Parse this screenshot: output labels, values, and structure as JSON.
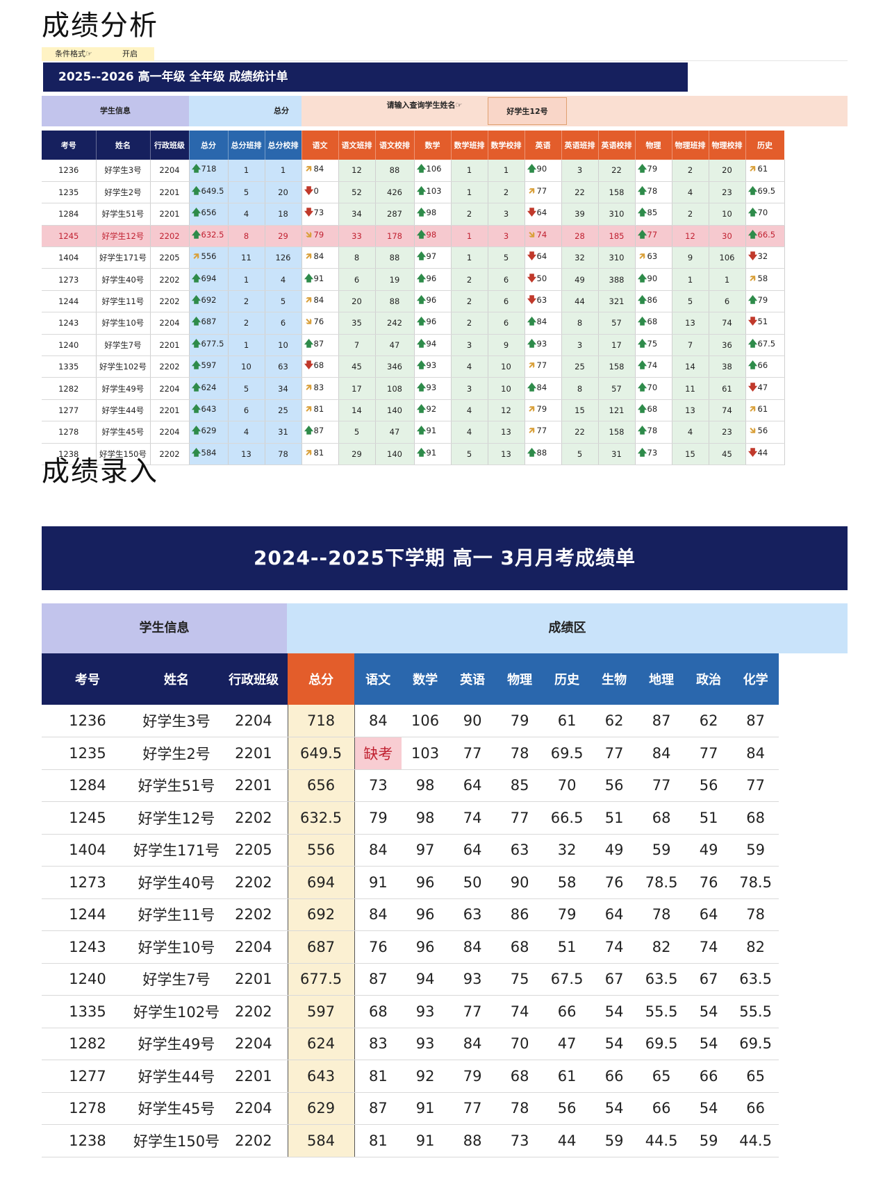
{
  "headings": {
    "analysis": "成绩分析",
    "entry": "成绩录入"
  },
  "analysis": {
    "cf_label": "条件格式☞",
    "cf_value": "开启",
    "title": "2025--2026 高一年级 全年级 成绩统计单",
    "groups": {
      "info": "学生信息",
      "total": "总分",
      "query_label": "请输入查询学生姓名☞",
      "query_value": "好学生12号"
    },
    "columns": [
      "考号",
      "姓名",
      "行政班级",
      "总分",
      "总分班排",
      "总分校排",
      "语文",
      "语文班排",
      "语文校排",
      "数学",
      "数学班排",
      "数学校排",
      "英语",
      "英语班排",
      "英语校排",
      "物理",
      "物理班排",
      "物理校排",
      "历史"
    ],
    "highlight_row": 3,
    "rows": [
      [
        "1236",
        "好学生3号",
        "2204",
        [
          "up",
          "718"
        ],
        "1",
        "1",
        [
          "ne",
          "84"
        ],
        "12",
        "88",
        [
          "up",
          "106"
        ],
        "1",
        "1",
        [
          "up",
          "90"
        ],
        "3",
        "22",
        [
          "up",
          "79"
        ],
        "2",
        "20",
        [
          "ne",
          "61"
        ]
      ],
      [
        "1235",
        "好学生2号",
        "2201",
        [
          "up",
          "649.5"
        ],
        "5",
        "20",
        [
          "dn",
          "0"
        ],
        "52",
        "426",
        [
          "up",
          "103"
        ],
        "1",
        "2",
        [
          "ne",
          "77"
        ],
        "22",
        "158",
        [
          "up",
          "78"
        ],
        "4",
        "23",
        [
          "up",
          "69.5"
        ]
      ],
      [
        "1284",
        "好学生51号",
        "2201",
        [
          "up",
          "656"
        ],
        "4",
        "18",
        [
          "dn",
          "73"
        ],
        "34",
        "287",
        [
          "up",
          "98"
        ],
        "2",
        "3",
        [
          "dn",
          "64"
        ],
        "39",
        "310",
        [
          "up",
          "85"
        ],
        "2",
        "10",
        [
          "up",
          "70"
        ]
      ],
      [
        "1245",
        "好学生12号",
        "2202",
        [
          "up",
          "632.5"
        ],
        "8",
        "29",
        [
          "se",
          "79"
        ],
        "33",
        "178",
        [
          "up",
          "98"
        ],
        "1",
        "3",
        [
          "se",
          "74"
        ],
        "28",
        "185",
        [
          "up",
          "77"
        ],
        "12",
        "30",
        [
          "up",
          "66.5"
        ]
      ],
      [
        "1404",
        "好学生171号",
        "2205",
        [
          "ne",
          "556"
        ],
        "11",
        "126",
        [
          "ne",
          "84"
        ],
        "8",
        "88",
        [
          "up",
          "97"
        ],
        "1",
        "5",
        [
          "dn",
          "64"
        ],
        "32",
        "310",
        [
          "ne",
          "63"
        ],
        "9",
        "106",
        [
          "dn",
          "32"
        ]
      ],
      [
        "1273",
        "好学生40号",
        "2202",
        [
          "up",
          "694"
        ],
        "1",
        "4",
        [
          "up",
          "91"
        ],
        "6",
        "19",
        [
          "up",
          "96"
        ],
        "2",
        "6",
        [
          "dn",
          "50"
        ],
        "49",
        "388",
        [
          "up",
          "90"
        ],
        "1",
        "1",
        [
          "ne",
          "58"
        ]
      ],
      [
        "1244",
        "好学生11号",
        "2202",
        [
          "up",
          "692"
        ],
        "2",
        "5",
        [
          "ne",
          "84"
        ],
        "20",
        "88",
        [
          "up",
          "96"
        ],
        "2",
        "6",
        [
          "dn",
          "63"
        ],
        "44",
        "321",
        [
          "up",
          "86"
        ],
        "5",
        "6",
        [
          "up",
          "79"
        ]
      ],
      [
        "1243",
        "好学生10号",
        "2204",
        [
          "up",
          "687"
        ],
        "2",
        "6",
        [
          "se",
          "76"
        ],
        "35",
        "242",
        [
          "up",
          "96"
        ],
        "2",
        "6",
        [
          "up",
          "84"
        ],
        "8",
        "57",
        [
          "up",
          "68"
        ],
        "13",
        "74",
        [
          "dn",
          "51"
        ]
      ],
      [
        "1240",
        "好学生7号",
        "2201",
        [
          "up",
          "677.5"
        ],
        "1",
        "10",
        [
          "up",
          "87"
        ],
        "7",
        "47",
        [
          "up",
          "94"
        ],
        "3",
        "9",
        [
          "up",
          "93"
        ],
        "3",
        "17",
        [
          "up",
          "75"
        ],
        "7",
        "36",
        [
          "up",
          "67.5"
        ]
      ],
      [
        "1335",
        "好学生102号",
        "2202",
        [
          "up",
          "597"
        ],
        "10",
        "63",
        [
          "dn",
          "68"
        ],
        "45",
        "346",
        [
          "up",
          "93"
        ],
        "4",
        "10",
        [
          "ne",
          "77"
        ],
        "25",
        "158",
        [
          "up",
          "74"
        ],
        "14",
        "38",
        [
          "up",
          "66"
        ]
      ],
      [
        "1282",
        "好学生49号",
        "2204",
        [
          "up",
          "624"
        ],
        "5",
        "34",
        [
          "ne",
          "83"
        ],
        "17",
        "108",
        [
          "up",
          "93"
        ],
        "3",
        "10",
        [
          "up",
          "84"
        ],
        "8",
        "57",
        [
          "up",
          "70"
        ],
        "11",
        "61",
        [
          "dn",
          "47"
        ]
      ],
      [
        "1277",
        "好学生44号",
        "2201",
        [
          "up",
          "643"
        ],
        "6",
        "25",
        [
          "ne",
          "81"
        ],
        "14",
        "140",
        [
          "up",
          "92"
        ],
        "4",
        "12",
        [
          "ne",
          "79"
        ],
        "15",
        "121",
        [
          "up",
          "68"
        ],
        "13",
        "74",
        [
          "ne",
          "61"
        ]
      ],
      [
        "1278",
        "好学生45号",
        "2204",
        [
          "up",
          "629"
        ],
        "4",
        "31",
        [
          "up",
          "87"
        ],
        "5",
        "47",
        [
          "up",
          "91"
        ],
        "4",
        "13",
        [
          "ne",
          "77"
        ],
        "22",
        "158",
        [
          "up",
          "78"
        ],
        "4",
        "23",
        [
          "se",
          "56"
        ]
      ],
      [
        "1238",
        "好学生150号",
        "2202",
        [
          "up",
          "584"
        ],
        "13",
        "78",
        [
          "ne",
          "81"
        ],
        "29",
        "140",
        [
          "up",
          "91"
        ],
        "5",
        "13",
        [
          "up",
          "88"
        ],
        "5",
        "31",
        [
          "up",
          "73"
        ],
        "15",
        "45",
        [
          "dn",
          "44"
        ]
      ]
    ],
    "arrow_glyphs": {
      "up": "🡅",
      "dn": "🡇",
      "ne": "🡵",
      "se": "🡶"
    },
    "colors": {
      "navy": "#16205e",
      "header_orange": "#e35d2b",
      "info_purple": "#c2c4ec",
      "total_blue": "#c9e3fa",
      "score_green": "#e4f2e5",
      "query_peach": "#fadfd2",
      "highlight": "#f6c9cf"
    }
  },
  "entry": {
    "title": "2024--2025下学期 高一 3月月考成绩单",
    "groups": {
      "info": "学生信息",
      "scores": "成绩区"
    },
    "columns": [
      "考号",
      "姓名",
      "行政班级",
      "总分",
      "语文",
      "数学",
      "英语",
      "物理",
      "历史",
      "生物",
      "地理",
      "政治",
      "化学"
    ],
    "absent_text": "缺考",
    "rows": [
      [
        "1236",
        "好学生3号",
        "2204",
        "718",
        "84",
        "106",
        "90",
        "79",
        "61",
        "62",
        "87",
        "62",
        "87"
      ],
      [
        "1235",
        "好学生2号",
        "2201",
        "649.5",
        "缺考",
        "103",
        "77",
        "78",
        "69.5",
        "77",
        "84",
        "77",
        "84"
      ],
      [
        "1284",
        "好学生51号",
        "2201",
        "656",
        "73",
        "98",
        "64",
        "85",
        "70",
        "56",
        "77",
        "56",
        "77"
      ],
      [
        "1245",
        "好学生12号",
        "2202",
        "632.5",
        "79",
        "98",
        "74",
        "77",
        "66.5",
        "51",
        "68",
        "51",
        "68"
      ],
      [
        "1404",
        "好学生171号",
        "2205",
        "556",
        "84",
        "97",
        "64",
        "63",
        "32",
        "49",
        "59",
        "49",
        "59"
      ],
      [
        "1273",
        "好学生40号",
        "2202",
        "694",
        "91",
        "96",
        "50",
        "90",
        "58",
        "76",
        "78.5",
        "76",
        "78.5"
      ],
      [
        "1244",
        "好学生11号",
        "2202",
        "692",
        "84",
        "96",
        "63",
        "86",
        "79",
        "64",
        "78",
        "64",
        "78"
      ],
      [
        "1243",
        "好学生10号",
        "2204",
        "687",
        "76",
        "96",
        "84",
        "68",
        "51",
        "74",
        "82",
        "74",
        "82"
      ],
      [
        "1240",
        "好学生7号",
        "2201",
        "677.5",
        "87",
        "94",
        "93",
        "75",
        "67.5",
        "67",
        "63.5",
        "67",
        "63.5"
      ],
      [
        "1335",
        "好学生102号",
        "2202",
        "597",
        "68",
        "93",
        "77",
        "74",
        "66",
        "54",
        "55.5",
        "54",
        "55.5"
      ],
      [
        "1282",
        "好学生49号",
        "2204",
        "624",
        "83",
        "93",
        "84",
        "70",
        "47",
        "54",
        "69.5",
        "54",
        "69.5"
      ],
      [
        "1277",
        "好学生44号",
        "2201",
        "643",
        "81",
        "92",
        "79",
        "68",
        "61",
        "66",
        "65",
        "66",
        "65"
      ],
      [
        "1278",
        "好学生45号",
        "2204",
        "629",
        "87",
        "91",
        "77",
        "78",
        "56",
        "54",
        "66",
        "54",
        "66"
      ],
      [
        "1238",
        "好学生150号",
        "2202",
        "584",
        "81",
        "91",
        "88",
        "73",
        "44",
        "59",
        "44.5",
        "59",
        "44.5"
      ]
    ],
    "colors": {
      "navy": "#16205e",
      "total_header": "#e35d2b",
      "score_header": "#2a67ad",
      "info_purple": "#c2c4ec",
      "scores_blue": "#c9e3fa",
      "total_cell": "#fbf0d2",
      "absent": "#f8cdd2"
    }
  }
}
